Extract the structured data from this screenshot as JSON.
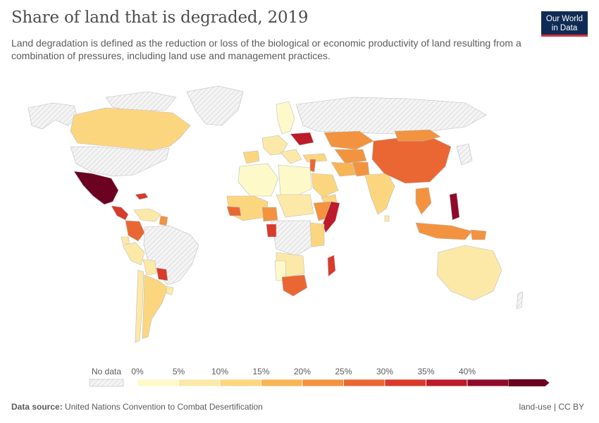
{
  "header": {
    "title": "Share of land that is degraded, 2019",
    "subtitle": "Land degradation is defined as the reduction or loss of the biological or economic productivity of land resulting from a combination of pressures, including land use and management practices.",
    "logo_line1": "Our World",
    "logo_line2": "in Data"
  },
  "legend": {
    "no_data_label": "No data",
    "bins": [
      {
        "label": "0%",
        "color": "#fef9c9"
      },
      {
        "label": "5%",
        "color": "#fde9a7"
      },
      {
        "label": "10%",
        "color": "#fcd67f"
      },
      {
        "label": "15%",
        "color": "#f8b556"
      },
      {
        "label": "20%",
        "color": "#f3933f"
      },
      {
        "label": "25%",
        "color": "#ea6734"
      },
      {
        "label": "30%",
        "color": "#d93a2b"
      },
      {
        "label": "35%",
        "color": "#bd1a2a"
      },
      {
        "label": "40%",
        "color": "#8f0a2a"
      }
    ],
    "last_color": "#6b0222"
  },
  "colors": {
    "no_data_fill": "#f2f2f2",
    "no_data_hatch": "#d0d0d0",
    "border": "#bdbdbd"
  },
  "footer": {
    "source_label": "Data source:",
    "source_text": "United Nations Convention to Combat Desertification",
    "license": "land-use | CC BY"
  }
}
